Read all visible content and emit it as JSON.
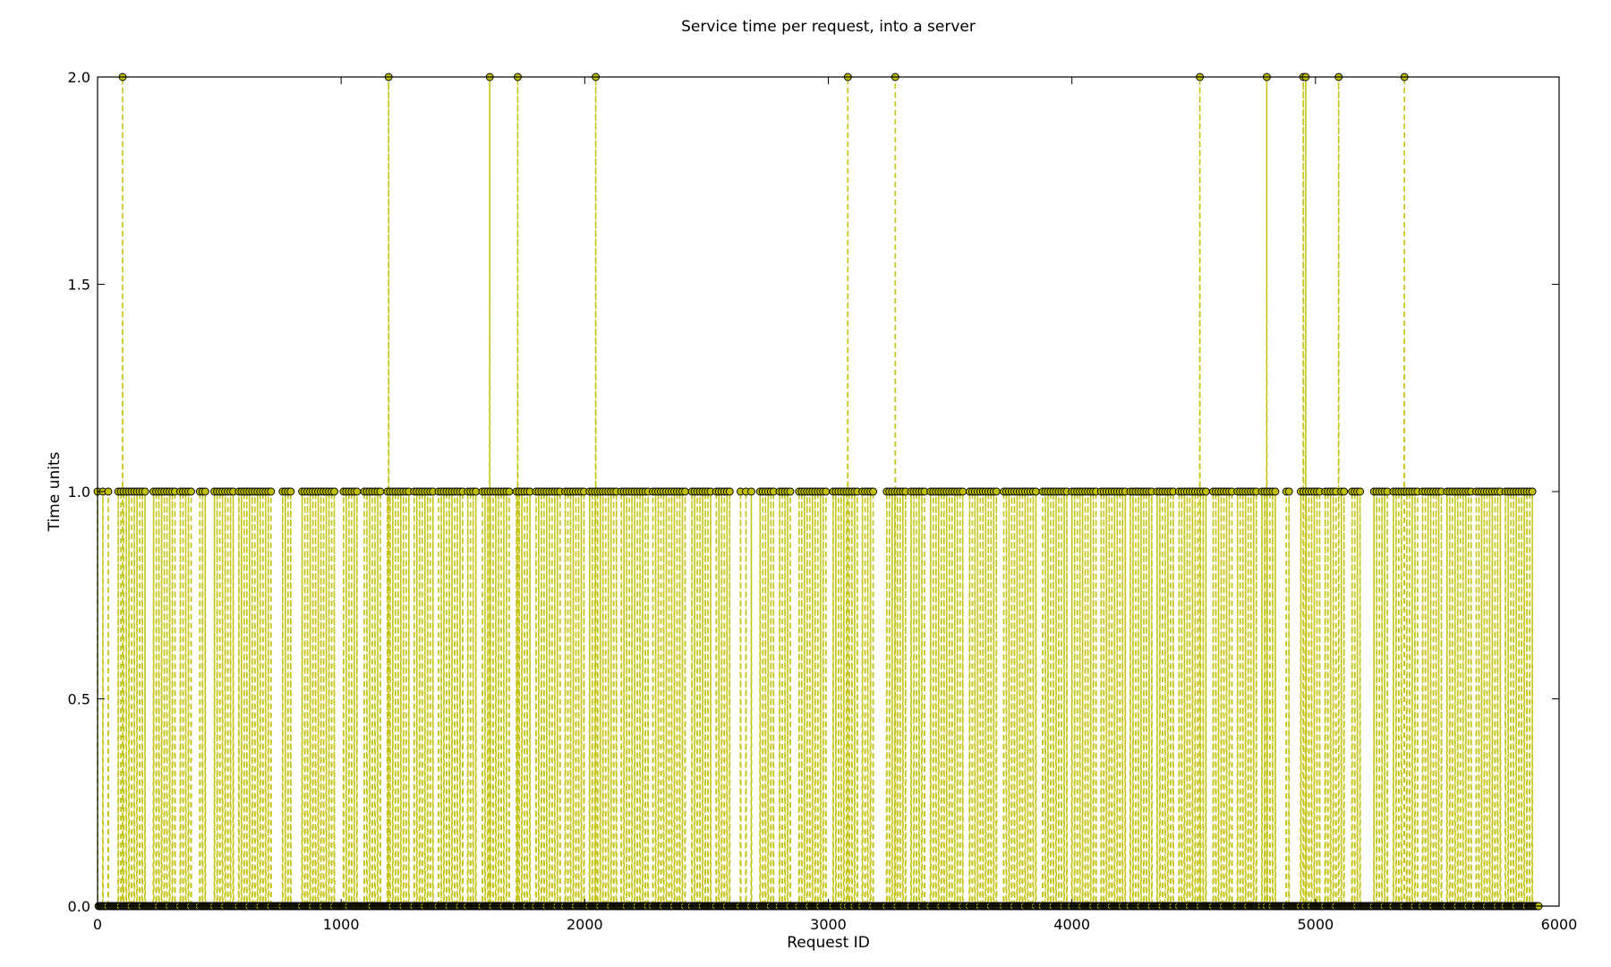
{
  "chart_data": {
    "type": "line",
    "title": "Service time per request, into a server",
    "xlabel": "Request ID",
    "ylabel": "Time units",
    "xlim": [
      0,
      6000
    ],
    "ylim": [
      0.0,
      2.0
    ],
    "xticks": [
      0,
      1000,
      2000,
      3000,
      4000,
      5000,
      6000
    ],
    "yticks": [
      0.0,
      0.5,
      1.0,
      1.5,
      2.0
    ],
    "ytick_labels": [
      "0.0",
      "0.5",
      "1.0",
      "1.5",
      "2.0"
    ],
    "grid": false,
    "legend": "none",
    "series_style": {
      "line_color": "#bfbf00",
      "line_style": "dashed",
      "marker": "circle",
      "marker_fill": "#bfbf00",
      "marker_edge": "#000000"
    },
    "n_requests": 5920,
    "observed_values": [
      0,
      1,
      2
    ],
    "value_2_request_ids": [
      103,
      1195,
      1610,
      1725,
      2045,
      3080,
      3275,
      4525,
      4800,
      4950,
      4960,
      5095,
      5365
    ],
    "value_1_runs": [
      [
        0,
        60
      ],
      [
        85,
        195
      ],
      [
        230,
        325
      ],
      [
        340,
        390
      ],
      [
        420,
        445
      ],
      [
        480,
        560
      ],
      [
        580,
        720
      ],
      [
        760,
        800
      ],
      [
        840,
        980
      ],
      [
        1010,
        1075
      ],
      [
        1095,
        1165
      ],
      [
        1190,
        1280
      ],
      [
        1300,
        1380
      ],
      [
        1400,
        1500
      ],
      [
        1520,
        1560
      ],
      [
        1580,
        1700
      ],
      [
        1720,
        1780
      ],
      [
        1800,
        1900
      ],
      [
        1920,
        2000
      ],
      [
        2020,
        2130
      ],
      [
        2150,
        2260
      ],
      [
        2280,
        2420
      ],
      [
        2440,
        2520
      ],
      [
        2540,
        2600
      ],
      [
        2640,
        2700
      ],
      [
        2720,
        2780
      ],
      [
        2800,
        2850
      ],
      [
        2880,
        3000
      ],
      [
        3020,
        3120
      ],
      [
        3140,
        3190
      ],
      [
        3240,
        3320
      ],
      [
        3340,
        3400
      ],
      [
        3420,
        3560
      ],
      [
        3580,
        3700
      ],
      [
        3720,
        3860
      ],
      [
        3880,
        3980
      ],
      [
        4000,
        4100
      ],
      [
        4120,
        4220
      ],
      [
        4240,
        4330
      ],
      [
        4350,
        4420
      ],
      [
        4440,
        4560
      ],
      [
        4580,
        4660
      ],
      [
        4680,
        4760
      ],
      [
        4780,
        4840
      ],
      [
        4880,
        4900
      ],
      [
        4940,
        5020
      ],
      [
        5040,
        5120
      ],
      [
        5150,
        5190
      ],
      [
        5240,
        5300
      ],
      [
        5320,
        5420
      ],
      [
        5440,
        5520
      ],
      [
        5540,
        5640
      ],
      [
        5660,
        5760
      ],
      [
        5780,
        5900
      ]
    ]
  }
}
